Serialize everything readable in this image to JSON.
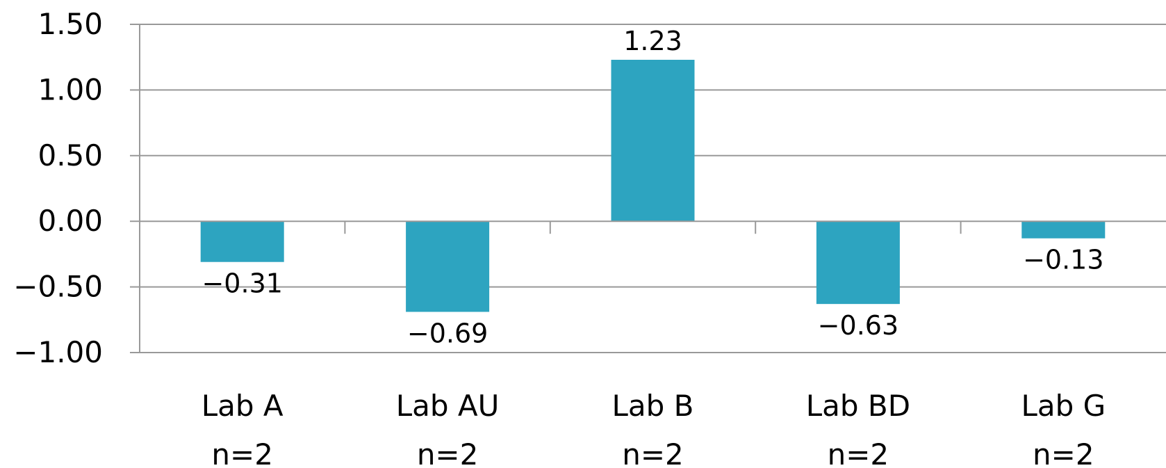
{
  "chart_data": {
    "type": "bar",
    "title": "",
    "xlabel": "",
    "ylabel": "",
    "ylim": [
      -1.0,
      1.5
    ],
    "yticks": [
      1.5,
      1.0,
      0.5,
      0.0,
      -0.5,
      -1.0
    ],
    "ytick_labels": [
      "1.50",
      "1.00",
      "0.50",
      "0.00",
      "−0.50",
      "−1.00"
    ],
    "grid": true,
    "legend": "none",
    "bar_color": "#2da4c0",
    "grid_color": "#999999",
    "categories": [
      "Lab A",
      "Lab AU",
      "Lab B",
      "Lab BD",
      "Lab G"
    ],
    "sample_sizes": [
      "n=2",
      "n=2",
      "n=2",
      "n=2",
      "n=2"
    ],
    "values": [
      -0.31,
      -0.69,
      1.23,
      -0.63,
      -0.13
    ],
    "value_labels": [
      "−0.31",
      "−0.69",
      "1.23",
      "−0.63",
      "−0.13"
    ]
  }
}
